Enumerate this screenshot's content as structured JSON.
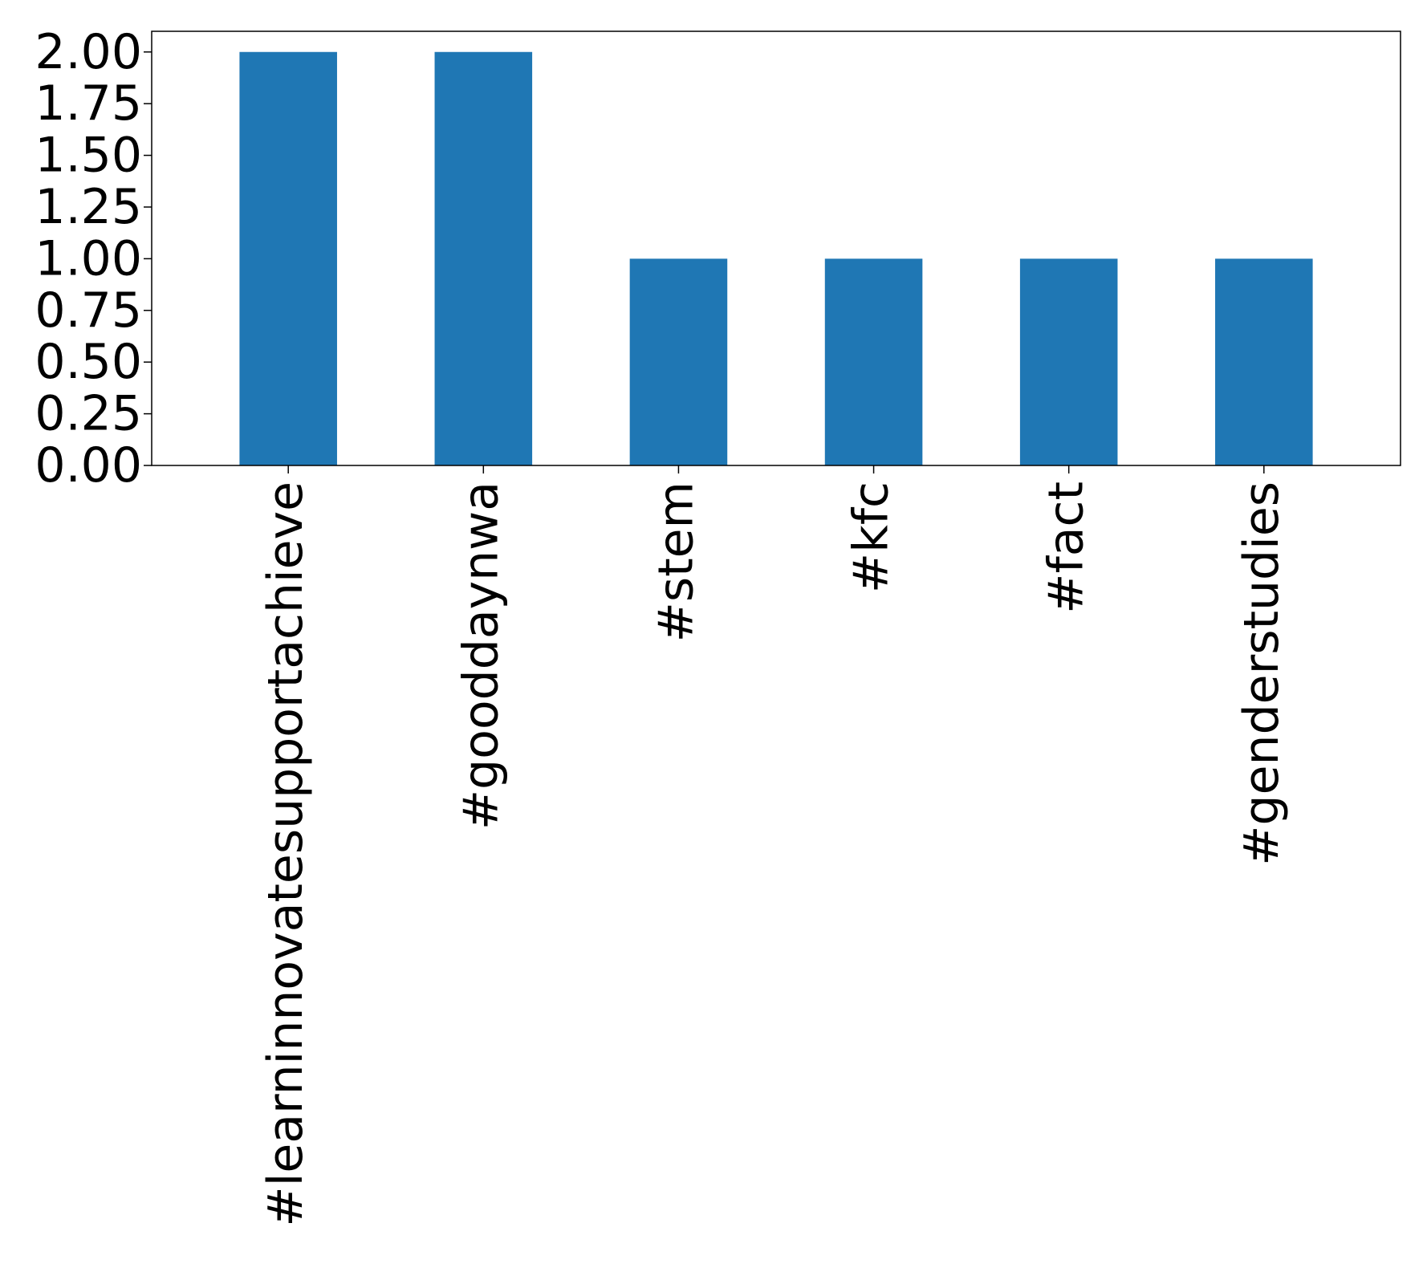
{
  "chart_data": {
    "type": "bar",
    "categories": [
      "#learninnovatesupportachieve",
      "#gooddaynwa",
      "#stem",
      "#kfc",
      "#fact",
      "#genderstudies"
    ],
    "values": [
      2,
      2,
      1,
      1,
      1,
      1
    ],
    "title": "",
    "xlabel": "",
    "ylabel": "",
    "ylim": [
      0,
      2.1
    ],
    "yticks": [
      "0.00",
      "0.25",
      "0.50",
      "0.75",
      "1.00",
      "1.25",
      "1.50",
      "1.75",
      "2.00"
    ],
    "grid": false,
    "legend": "none",
    "bar_color": "#1f77b4"
  }
}
